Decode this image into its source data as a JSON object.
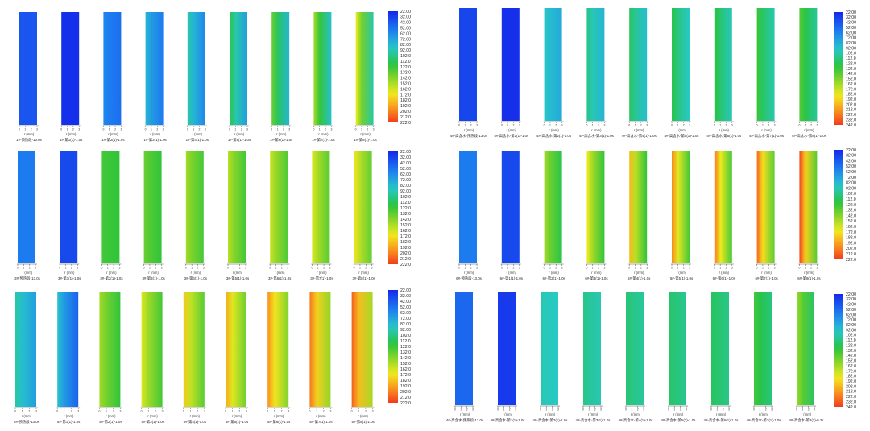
{
  "colorbar_dark": {
    "min": 22.0,
    "max": 222.0,
    "labels": [
      "22.00",
      "32.00",
      "42.00",
      "52.00",
      "62.00",
      "72.00",
      "82.00",
      "92.00",
      "102.0",
      "112.0",
      "122.0",
      "132.0",
      "142.0",
      "152.0",
      "162.0",
      "172.0",
      "182.0",
      "192.0",
      "202.0",
      "212.0",
      "222.0"
    ]
  },
  "colorbar_light": {
    "min": 22.0,
    "max": 242.0,
    "labels": [
      "22.00",
      "32.00",
      "42.00",
      "52.00",
      "62.00",
      "72.00",
      "82.00",
      "92.00",
      "102.0",
      "112.0",
      "122.0",
      "132.0",
      "142.0",
      "152.0",
      "162.0",
      "172.0",
      "182.0",
      "192.0",
      "202.0",
      "212.0",
      "222.0",
      "232.0",
      "242.0"
    ]
  },
  "axis": {
    "xlabel": "r (mm)",
    "ticks": [
      "0",
      "1",
      "2",
      "3"
    ]
  },
  "chart_data": [
    {
      "type": "heatmap",
      "panel_group": "1#",
      "unit_labels": [
        "1#-预热段-13.0s",
        "1#-第1(1)-1.0s",
        "1#-第2(1)-1.0s",
        "1#-第3(1)-1.0s",
        "1#-第4(1)-1.0s",
        "1#-第5(1)-1.0s",
        "1#-第6(1)-1.0s",
        "1#-第7(1)-1.0s",
        "1#-第8(1)-1.0s"
      ],
      "surface_temperature": [
        40,
        25,
        60,
        80,
        95,
        115,
        135,
        150,
        170
      ],
      "core_temperature": [
        40,
        25,
        50,
        55,
        60,
        70,
        80,
        85,
        95
      ],
      "colorbar_range": [
        22.0,
        222.0
      ]
    },
    {
      "type": "heatmap",
      "panel_group": "3#",
      "unit_labels": [
        "3#-预热段-13.0s",
        "3#-第1(1)-1.0s",
        "3#-第2(1)-1.0s",
        "3#-第3(1)-1.0s",
        "3#-第4(1)-1.0s",
        "3#-第5(1)-1.0s",
        "3#-第6(1)-1.0s",
        "3#-第7(1)-1.0s",
        "3#-第8(1)-1.0s"
      ],
      "surface_temperature": [
        55,
        35,
        125,
        135,
        150,
        155,
        160,
        165,
        172
      ],
      "core_temperature": [
        55,
        35,
        120,
        120,
        125,
        125,
        128,
        130,
        132
      ],
      "colorbar_range": [
        22.0,
        222.0
      ]
    },
    {
      "type": "heatmap",
      "panel_group": "5#",
      "unit_labels": [
        "5#-预热段-13.0s",
        "5#-第1(1)-1.0s",
        "5#-第2(1)-1.0s",
        "5#-第3(1)-1.0s",
        "5#-第4(1)-1.0s",
        "5#-第5(1)-1.0s",
        "5#-第6(1)-1.0s",
        "5#-第7(1)-1.0s",
        "5#-第8(1)-1.0s"
      ],
      "surface_temperature": [
        95,
        85,
        150,
        165,
        180,
        190,
        198,
        205,
        212
      ],
      "core_temperature": [
        70,
        45,
        120,
        125,
        130,
        135,
        140,
        145,
        150
      ],
      "colorbar_range": [
        22.0,
        222.0
      ]
    },
    {
      "type": "heatmap",
      "panel_group": "4#",
      "unit_labels": [
        "4#-高含水-预热段-13.0s",
        "4#-高含水-第1(1)-1.0s",
        "4#-高含水-第2(1)-1.0s",
        "4#-高含水-第3(1)-1.0s",
        "4#-高含水-第4(1)-1.0s",
        "4#-高含水-第5(1)-1.0s",
        "4#-高含水-第6(1)-1.0s",
        "4#-高含水-第7(1)-1.0s",
        "4#-高含水-第8(1)-1.0s"
      ],
      "surface_temperature": [
        35,
        25,
        95,
        110,
        120,
        125,
        128,
        132,
        140
      ],
      "core_temperature": [
        35,
        25,
        80,
        85,
        90,
        95,
        98,
        100,
        105
      ],
      "colorbar_range": [
        22.0,
        242.0
      ]
    },
    {
      "type": "heatmap",
      "panel_group": "6#",
      "unit_labels": [
        "6#-预热段-13.0s",
        "6#-第1(1)-1.0s",
        "6#-第2(1)-1.0s",
        "6#-第3(1)-1.0s",
        "6#-第4(1)-1.0s",
        "6#-第5(1)-1.0s",
        "6#-第6(1)-1.0s",
        "6#-第7(1)-1.0s",
        "6#-第8(1)-1.0s"
      ],
      "surface_temperature": [
        55,
        35,
        150,
        170,
        185,
        200,
        205,
        210,
        218
      ],
      "core_temperature": [
        55,
        35,
        115,
        120,
        120,
        125,
        125,
        130,
        130
      ],
      "colorbar_range": [
        22.0,
        222.0
      ]
    },
    {
      "type": "heatmap",
      "panel_group": "4#",
      "unit_labels": [
        "4#-高含水-预热段-13.0s",
        "4#-高含水-第1(1)-1.0s",
        "4#-高含水-第2(1)-1.0s",
        "4#-高含水-第3(1)-1.0s",
        "4#-高含水-第4(1)-1.0s",
        "4#-高含水-第5(1)-1.0s",
        "4#-高含水-第6(1)-1.0s",
        "4#-高含水-第7(1)-1.0s",
        "4#-高含水-第8(1)-0.2s"
      ],
      "surface_temperature": [
        50,
        30,
        100,
        110,
        115,
        118,
        120,
        135,
        160
      ],
      "core_temperature": [
        50,
        30,
        95,
        100,
        105,
        108,
        110,
        112,
        118
      ],
      "colorbar_range": [
        22.0,
        242.0
      ]
    }
  ]
}
